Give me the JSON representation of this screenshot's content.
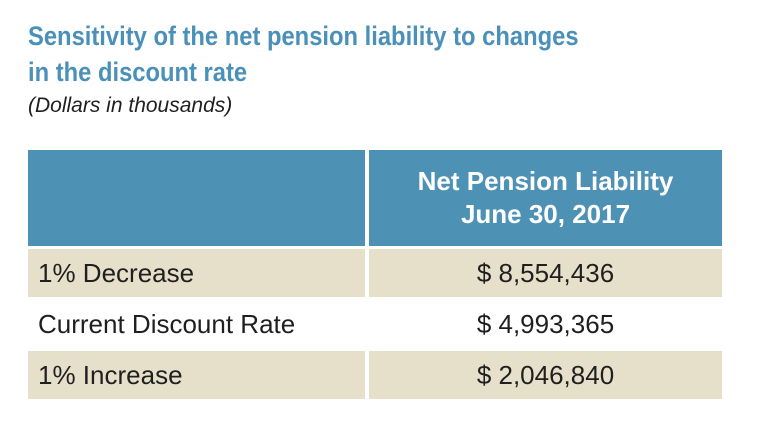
{
  "title": {
    "line1": "Sensitivity of the net pension liability to changes",
    "line2": "in the discount rate"
  },
  "subtitle": "(Dollars in thousands)",
  "table": {
    "header": {
      "line1": "Net Pension Liability",
      "line2": "June 30, 2017"
    },
    "rows": [
      {
        "label": "1% Decrease",
        "value": "$ 8,554,436"
      },
      {
        "label": "Current Discount Rate",
        "value": "$ 4,993,365"
      },
      {
        "label": "1% Increase",
        "value": "$ 2,046,840"
      }
    ]
  },
  "colors": {
    "header_bg": "#4d92b5",
    "title": "#4a90b8",
    "row_alt_bg": "#e6e0ca",
    "text": "#1f1f1f"
  }
}
